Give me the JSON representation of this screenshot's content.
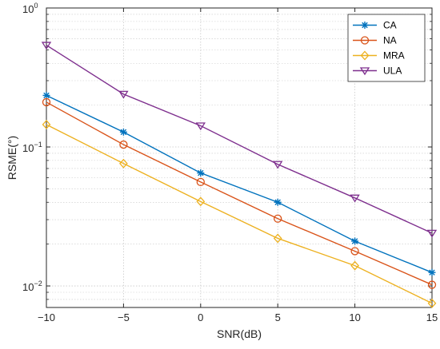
{
  "chart_data": {
    "type": "line",
    "title": "",
    "xlabel": "SNR(dB)",
    "ylabel": "RSME(°)",
    "x": [
      -10,
      -5,
      0,
      5,
      10,
      15
    ],
    "xlim": [
      -10,
      15
    ],
    "ylim": [
      0.007,
      1
    ],
    "yscale": "log",
    "grid": true,
    "minor_grid": true,
    "legend_position": "top-right",
    "x_tick_labels": [
      "−10",
      "−5",
      "0",
      "5",
      "10",
      "15"
    ],
    "y_ticks": [
      {
        "value": 1,
        "base": "10",
        "exp": "0"
      },
      {
        "value": 0.1,
        "base": "10",
        "exp": "−1"
      },
      {
        "value": 0.01,
        "base": "10",
        "exp": "−2"
      }
    ],
    "series": [
      {
        "name": "CA",
        "color": "#0072BD",
        "marker": "asterisk",
        "values": [
          0.235,
          0.128,
          0.065,
          0.04,
          0.021,
          0.0125
        ]
      },
      {
        "name": "NA",
        "color": "#D95319",
        "marker": "circle",
        "values": [
          0.21,
          0.104,
          0.056,
          0.0305,
          0.0178,
          0.0102
        ]
      },
      {
        "name": "MRA",
        "color": "#EDB120",
        "marker": "diamond",
        "values": [
          0.145,
          0.076,
          0.0405,
          0.022,
          0.014,
          0.0075
        ]
      },
      {
        "name": "ULA",
        "color": "#7E2F8E",
        "marker": "triangle-down",
        "values": [
          0.54,
          0.24,
          0.142,
          0.075,
          0.043,
          0.024
        ]
      }
    ]
  }
}
